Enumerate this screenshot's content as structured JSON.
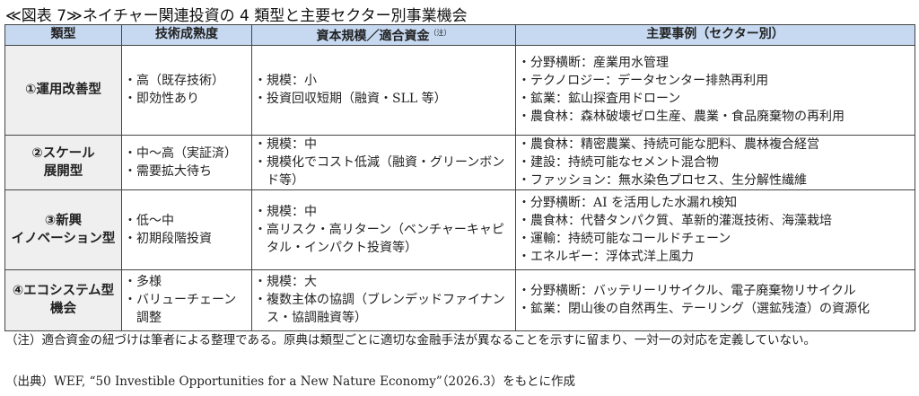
{
  "title": "≪図表 7≫ネイチャー関連投資の 4 類型と主要セクター別事業機会",
  "table": {
    "headers": [
      "類型",
      "技術成熟度",
      "資本規模／適合資金",
      "主要事例（セクター別）"
    ],
    "header_note_mark": "（注）",
    "rows": [
      {
        "type_lines": [
          "①運用改善型"
        ],
        "maturity": [
          "高（既存技術）",
          "即効性あり"
        ],
        "capital": [
          "規模：小",
          "投資回収短期（融資・SLL 等）"
        ],
        "examples": [
          "分野横断：産業用水管理",
          "テクノロジー：データセンター排熱再利用",
          "鉱業：鉱山探査用ドローン",
          "農食林：森林破壊ゼロ生産、農業・食品廃棄物の再利用"
        ]
      },
      {
        "type_lines": [
          "②スケール",
          "展開型"
        ],
        "maturity": [
          "中～高（実証済）",
          "需要拡大待ち"
        ],
        "capital": [
          "規模：中",
          "規模化でコスト低減（融資・グリーンボンド等）"
        ],
        "examples": [
          "農食林：精密農業、持続可能な肥料、農林複合経営",
          "建設：持続可能なセメント混合物",
          "ファッション：無水染色プロセス、生分解性繊維"
        ]
      },
      {
        "type_lines": [
          "③新興",
          "イノベーション型"
        ],
        "maturity": [
          "低～中",
          "初期段階投資"
        ],
        "capital": [
          "規模：中",
          "高リスク・高リターン（ベンチャーキャピタル・インパクト投資等）"
        ],
        "examples": [
          "分野横断：AI を活用した水漏れ検知",
          "農食林：代替タンパク質、革新的灌漑技術、海藻栽培",
          "運輸：持続可能なコールドチェーン",
          "エネルギー：浮体式洋上風力"
        ]
      },
      {
        "type_lines": [
          "④エコシステム型",
          "機会"
        ],
        "maturity": [
          "多様",
          "バリューチェーン調整"
        ],
        "capital": [
          "規模：大",
          "複数主体の協調（ブレンデッドファイナンス・協調融資等）"
        ],
        "examples": [
          "分野横断：バッテリーリサイクル、電子廃棄物リサイクル",
          "鉱業：閉山後の自然再生、テーリング（選鉱残渣）の資源化"
        ]
      }
    ]
  },
  "note": "（注）適合資金の紐づけは筆者による整理である。原典は類型ごとに適切な金融手法が異なることを示すに留まり、一対一の対応を定義していない。",
  "source": "（出典）WEF, “50 Investible Opportunities for a New Nature Economy”（2026.3）をもとに作成",
  "colors": {
    "header_bg": "#c6d9f1",
    "type_col_bg": "#efefef",
    "border": "#444444"
  }
}
